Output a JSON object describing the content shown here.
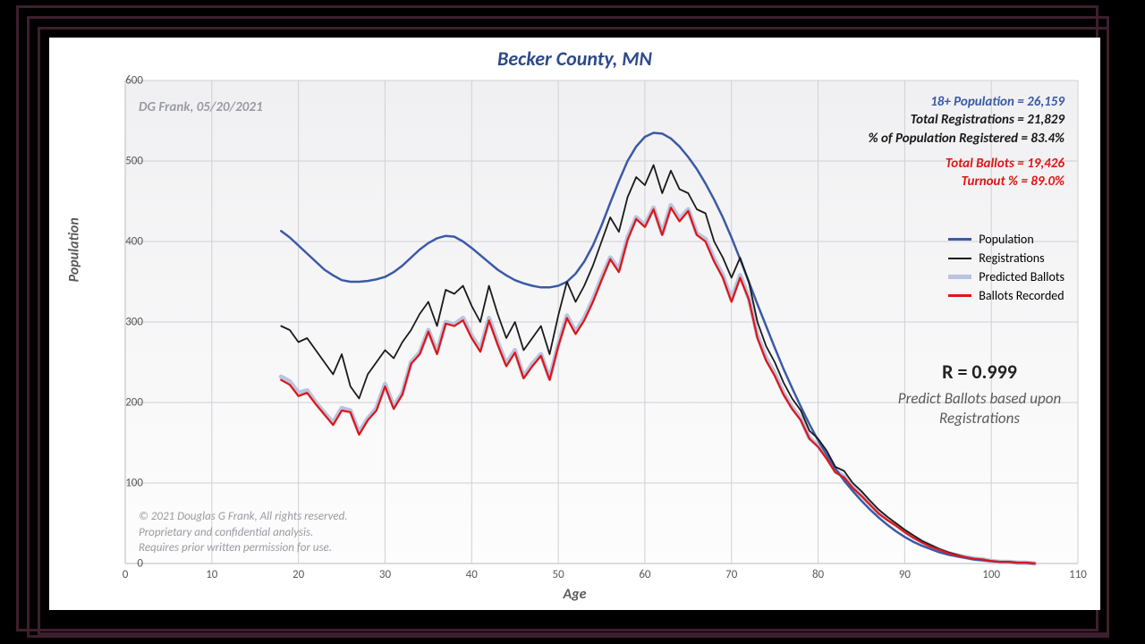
{
  "chart": {
    "title": "Becker County, MN",
    "title_color": "#2e4a8a",
    "title_fontsize": 22,
    "xlabel": "Age",
    "ylabel": "Population",
    "label_color": "#5a5a5a",
    "xlim": [
      0,
      110
    ],
    "ylim": [
      0,
      600
    ],
    "xtick_step": 10,
    "ytick_step": 100,
    "grid_color": "#d0d0d5",
    "plot_bg_top": "#f0f0f2",
    "plot_bg_bottom": "#fdfdfd",
    "series_x_start": 18,
    "series_x_end": 105,
    "series": {
      "population": {
        "label": "Population",
        "color": "#3b5aa6",
        "width": 2.5,
        "values": [
          413,
          405,
          395,
          385,
          375,
          365,
          358,
          352,
          350,
          350,
          351,
          353,
          356,
          362,
          370,
          380,
          390,
          398,
          404,
          407,
          406,
          400,
          392,
          383,
          374,
          365,
          358,
          352,
          348,
          345,
          343,
          343,
          345,
          350,
          360,
          375,
          395,
          420,
          448,
          475,
          500,
          518,
          530,
          535,
          534,
          528,
          518,
          505,
          490,
          472,
          452,
          430,
          405,
          378,
          350,
          322,
          295,
          268,
          242,
          218,
          195,
          173,
          153,
          135,
          118,
          103,
          90,
          78,
          67,
          57,
          48,
          40,
          33,
          27,
          22,
          18,
          14,
          11,
          9,
          7,
          5,
          4,
          3,
          2,
          2,
          1,
          1,
          0
        ]
      },
      "registrations": {
        "label": "Registrations",
        "color": "#1a1a1a",
        "width": 1.8,
        "values": [
          295,
          290,
          275,
          280,
          265,
          250,
          235,
          260,
          220,
          205,
          235,
          250,
          265,
          255,
          275,
          290,
          310,
          325,
          295,
          340,
          335,
          345,
          320,
          300,
          345,
          310,
          280,
          300,
          265,
          280,
          295,
          260,
          308,
          350,
          325,
          345,
          370,
          400,
          430,
          412,
          455,
          480,
          470,
          495,
          460,
          488,
          465,
          460,
          440,
          435,
          400,
          380,
          355,
          380,
          350,
          300,
          270,
          250,
          225,
          205,
          190,
          165,
          155,
          140,
          120,
          115,
          100,
          90,
          78,
          67,
          58,
          50,
          42,
          35,
          28,
          23,
          18,
          14,
          11,
          8,
          6,
          5,
          3,
          2,
          2,
          1,
          1,
          0
        ]
      },
      "predicted": {
        "label": "Predicted Ballots",
        "color": "#b8c4e0",
        "width": 5,
        "values": [
          232,
          226,
          212,
          215,
          200,
          187,
          175,
          193,
          190,
          163,
          180,
          193,
          223,
          195,
          212,
          250,
          262,
          290,
          263,
          300,
          297,
          305,
          283,
          266,
          305,
          275,
          248,
          265,
          232,
          248,
          260,
          230,
          272,
          308,
          288,
          305,
          328,
          355,
          380,
          365,
          405,
          430,
          420,
          442,
          410,
          445,
          428,
          440,
          410,
          403,
          378,
          358,
          328,
          358,
          330,
          283,
          255,
          236,
          212,
          194,
          180,
          156,
          146,
          132,
          115,
          108,
          95,
          85,
          74,
          63,
          55,
          48,
          40,
          33,
          27,
          22,
          17,
          13,
          10,
          8,
          6,
          5,
          3,
          2,
          2,
          1,
          1,
          0
        ]
      },
      "ballots": {
        "label": "Ballots Recorded",
        "color": "#e01515",
        "width": 2.2,
        "values": [
          228,
          222,
          208,
          212,
          198,
          185,
          172,
          190,
          188,
          160,
          178,
          190,
          220,
          192,
          210,
          248,
          260,
          288,
          260,
          298,
          295,
          302,
          280,
          263,
          302,
          272,
          245,
          262,
          230,
          245,
          258,
          228,
          270,
          305,
          285,
          302,
          325,
          352,
          378,
          362,
          402,
          428,
          418,
          440,
          408,
          442,
          425,
          438,
          408,
          400,
          375,
          355,
          325,
          355,
          328,
          280,
          252,
          233,
          210,
          192,
          178,
          155,
          145,
          130,
          113,
          107,
          94,
          84,
          73,
          62,
          54,
          47,
          39,
          32,
          26,
          21,
          17,
          13,
          10,
          8,
          6,
          5,
          3,
          2,
          2,
          1,
          1,
          0
        ]
      }
    }
  },
  "annotations": {
    "attribution": "DG Frank, 05/20/2021",
    "stats": {
      "pop_line": "18+ Population = 26,159",
      "pop_color": "#3b5aa6",
      "reg_line": "Total Registrations = 21,829",
      "pct_line": "% of Population Registered = 83.4%",
      "ballots_line": "Total Ballots = 19,426",
      "turnout_line": "Turnout % = 89.0%",
      "ballots_color": "#e01515",
      "text_color": "#1a1a1a"
    },
    "r_value": "R = 0.999",
    "r_desc": "Predict Ballots based upon Registrations",
    "copyright_l1": "© 2021 Douglas G Frank, All rights reserved.",
    "copyright_l2": "Proprietary and confidential analysis.",
    "copyright_l3": "Requires prior written permission for use."
  }
}
